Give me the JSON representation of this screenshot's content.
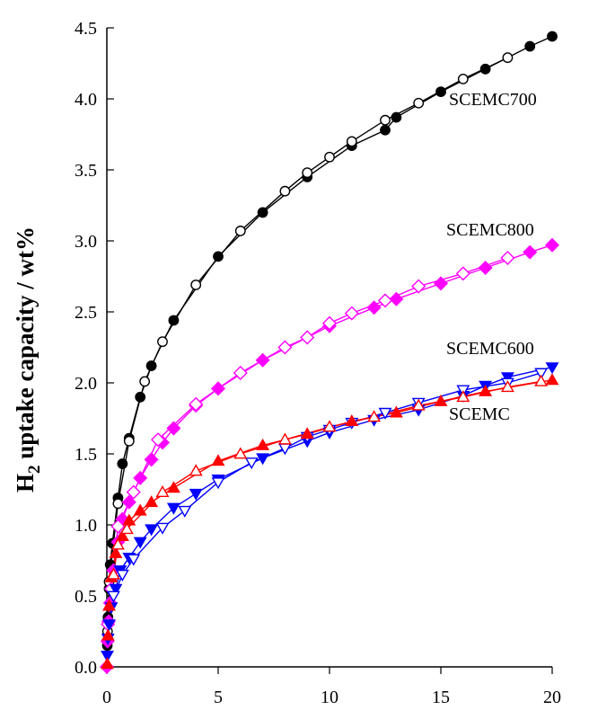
{
  "chart_data": {
    "type": "line",
    "title": "",
    "xlabel": "",
    "ylabel_main": "H",
    "ylabel_sub": "2",
    "ylabel_rest": " uptake capacity / wt%",
    "xlim": [
      0,
      20
    ],
    "ylim": [
      0,
      4.5
    ],
    "xticks": [
      "0",
      "5",
      "10",
      "15",
      "20"
    ],
    "yticks": [
      "0.0",
      "0.5",
      "1.0",
      "1.5",
      "2.0",
      "2.5",
      "3.0",
      "3.5",
      "4.0",
      "4.5"
    ],
    "grid": false,
    "series": [
      {
        "name": "SCEMC700",
        "label_text": "SCEMC700",
        "color": "#000000",
        "marker": "circle",
        "adsorption": [
          [
            0.02,
            0.15
          ],
          [
            0.05,
            0.35
          ],
          [
            0.1,
            0.55
          ],
          [
            0.15,
            0.72
          ],
          [
            0.25,
            0.87
          ],
          [
            0.5,
            1.19
          ],
          [
            0.7,
            1.43
          ],
          [
            1.0,
            1.61
          ],
          [
            1.5,
            1.9
          ],
          [
            2.0,
            2.12
          ],
          [
            3.0,
            2.44
          ],
          [
            5.0,
            2.89
          ],
          [
            7.0,
            3.2
          ],
          [
            9.0,
            3.45
          ],
          [
            11.0,
            3.67
          ],
          [
            12.5,
            3.78
          ],
          [
            13.0,
            3.87
          ],
          [
            15.0,
            4.05
          ],
          [
            17.0,
            4.21
          ],
          [
            19.0,
            4.37
          ],
          [
            20.0,
            4.44
          ]
        ],
        "desorption": [
          [
            0.03,
            0.25
          ],
          [
            0.1,
            0.6
          ],
          [
            0.5,
            1.15
          ],
          [
            1.0,
            1.59
          ],
          [
            1.7,
            2.01
          ],
          [
            2.5,
            2.29
          ],
          [
            4.0,
            2.69
          ],
          [
            6.0,
            3.07
          ],
          [
            8.0,
            3.35
          ],
          [
            9.0,
            3.48
          ],
          [
            10.0,
            3.59
          ],
          [
            11.0,
            3.7
          ],
          [
            12.5,
            3.85
          ],
          [
            14.0,
            3.97
          ],
          [
            16.0,
            4.14
          ],
          [
            18.0,
            4.29
          ]
        ]
      },
      {
        "name": "SCEMC800",
        "label_text": "SCEMC800",
        "color": "#ff00ff",
        "marker": "diamond",
        "adsorption": [
          [
            0.0,
            0.0
          ],
          [
            0.03,
            0.18
          ],
          [
            0.08,
            0.32
          ],
          [
            0.15,
            0.45
          ],
          [
            0.3,
            0.68
          ],
          [
            0.5,
            0.88
          ],
          [
            0.7,
            1.04
          ],
          [
            1.0,
            1.16
          ],
          [
            1.5,
            1.33
          ],
          [
            2.0,
            1.46
          ],
          [
            2.5,
            1.58
          ],
          [
            3.0,
            1.68
          ],
          [
            4.0,
            1.84
          ],
          [
            5.0,
            1.96
          ],
          [
            7.0,
            2.16
          ],
          [
            10.0,
            2.4
          ],
          [
            12.0,
            2.53
          ],
          [
            13.0,
            2.59
          ],
          [
            15.0,
            2.7
          ],
          [
            17.0,
            2.81
          ],
          [
            19.0,
            2.92
          ],
          [
            20.0,
            2.97
          ]
        ],
        "desorption": [
          [
            0.05,
            0.3
          ],
          [
            0.2,
            0.55
          ],
          [
            0.5,
            0.99
          ],
          [
            1.2,
            1.23
          ],
          [
            2.3,
            1.6
          ],
          [
            4.0,
            1.85
          ],
          [
            6.0,
            2.07
          ],
          [
            8.0,
            2.25
          ],
          [
            9.0,
            2.32
          ],
          [
            10.0,
            2.42
          ],
          [
            11.0,
            2.49
          ],
          [
            12.5,
            2.58
          ],
          [
            14.0,
            2.68
          ],
          [
            16.0,
            2.77
          ],
          [
            18.0,
            2.88
          ]
        ]
      },
      {
        "name": "SCEMC600",
        "label_text": "SCEMC600",
        "color": "#0000ff",
        "marker": "triangle-down",
        "adsorption": [
          [
            0.02,
            0.08
          ],
          [
            0.05,
            0.2
          ],
          [
            0.1,
            0.3
          ],
          [
            0.2,
            0.42
          ],
          [
            0.4,
            0.55
          ],
          [
            0.6,
            0.68
          ],
          [
            1.0,
            0.77
          ],
          [
            1.5,
            0.88
          ],
          [
            2.0,
            0.97
          ],
          [
            3.0,
            1.12
          ],
          [
            4.0,
            1.22
          ],
          [
            5.0,
            1.32
          ],
          [
            7.0,
            1.47
          ],
          [
            9.0,
            1.59
          ],
          [
            10.0,
            1.65
          ],
          [
            12.0,
            1.74
          ],
          [
            14.0,
            1.81
          ],
          [
            16.0,
            1.91
          ],
          [
            17.0,
            1.98
          ],
          [
            18.0,
            2.04
          ],
          [
            20.0,
            2.11
          ]
        ],
        "desorption": [
          [
            0.3,
            0.5
          ],
          [
            0.7,
            0.65
          ],
          [
            1.2,
            0.76
          ],
          [
            2.5,
            0.98
          ],
          [
            3.5,
            1.1
          ],
          [
            5.0,
            1.3
          ],
          [
            6.5,
            1.44
          ],
          [
            8.0,
            1.54
          ],
          [
            9.0,
            1.62
          ],
          [
            10.0,
            1.67
          ],
          [
            11.0,
            1.72
          ],
          [
            12.5,
            1.79
          ],
          [
            14.0,
            1.86
          ],
          [
            16.0,
            1.95
          ],
          [
            18.0,
            2.0
          ],
          [
            19.5,
            2.07
          ]
        ]
      },
      {
        "name": "SCEMC",
        "label_text": "SCEMC",
        "color": "#ff0000",
        "marker": "triangle-up",
        "adsorption": [
          [
            0.02,
            0.02
          ],
          [
            0.05,
            0.22
          ],
          [
            0.1,
            0.43
          ],
          [
            0.2,
            0.63
          ],
          [
            0.4,
            0.8
          ],
          [
            0.7,
            0.92
          ],
          [
            1.0,
            1.03
          ],
          [
            1.5,
            1.1
          ],
          [
            2.0,
            1.16
          ],
          [
            3.0,
            1.26
          ],
          [
            5.0,
            1.45
          ],
          [
            7.0,
            1.56
          ],
          [
            9.0,
            1.64
          ],
          [
            11.0,
            1.73
          ],
          [
            13.0,
            1.79
          ],
          [
            15.0,
            1.87
          ],
          [
            17.0,
            1.94
          ],
          [
            20.0,
            2.02
          ]
        ],
        "desorption": [
          [
            0.3,
            0.65
          ],
          [
            0.5,
            0.86
          ],
          [
            0.9,
            0.97
          ],
          [
            2.5,
            1.23
          ],
          [
            4.0,
            1.38
          ],
          [
            6.0,
            1.5
          ],
          [
            8.0,
            1.6
          ],
          [
            10.0,
            1.69
          ],
          [
            12.0,
            1.76
          ],
          [
            14.0,
            1.84
          ],
          [
            16.0,
            1.9
          ],
          [
            18.0,
            1.97
          ],
          [
            19.5,
            2.01
          ]
        ]
      }
    ],
    "labels_position": "right"
  }
}
